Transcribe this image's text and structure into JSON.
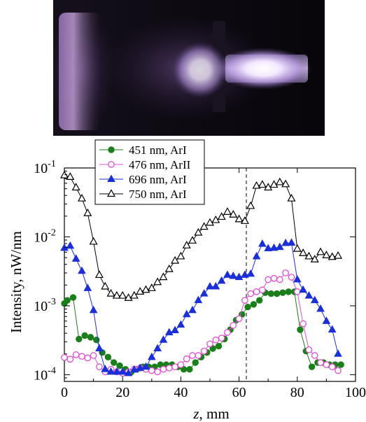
{
  "chart_data": {
    "type": "line",
    "xlabel_var": "z",
    "xlabel_unit": ", mm",
    "ylabel": "Intensity, nW/nm",
    "xlim": [
      0,
      100
    ],
    "ylim": [
      8e-05,
      0.1
    ],
    "yscale": "log",
    "x_ticks": [
      "0",
      "20",
      "40",
      "60",
      "80",
      "100"
    ],
    "y_ticks": [
      {
        "base": "10",
        "exp": "-4"
      },
      {
        "base": "10",
        "exp": "-3"
      },
      {
        "base": "10",
        "exp": "-2"
      },
      {
        "base": "10",
        "exp": "-1"
      }
    ],
    "legend_position": "top-left",
    "vline_x": 62.5,
    "series": [
      {
        "name": "451 nm, ArI",
        "color": "#1a7f1a",
        "marker": "circle-filled",
        "x": [
          0,
          1,
          3,
          5,
          7,
          9,
          11,
          13,
          15,
          17,
          19,
          21,
          23,
          25,
          27,
          29,
          31,
          33,
          35,
          37,
          39,
          41,
          43,
          45,
          47,
          49,
          51,
          53,
          55,
          57,
          59,
          61,
          63,
          65,
          67,
          69,
          71,
          73,
          75,
          77,
          79,
          81,
          83,
          85,
          87,
          89,
          91,
          93,
          95
        ],
        "y": [
          0.00108,
          0.0012,
          0.00132,
          0.00033,
          0.00037,
          0.00035,
          0.00032,
          0.00021,
          0.00018,
          0.00015,
          0.000135,
          0.00012,
          0.00011,
          0.00012,
          0.00013,
          0.00013,
          0.00013,
          0.00014,
          0.00014,
          0.00014,
          0.00013,
          0.00012,
          0.00012,
          0.00015,
          0.00018,
          0.00021,
          0.00024,
          0.00026,
          0.00033,
          0.00045,
          0.00062,
          0.00075,
          0.00096,
          0.00105,
          0.0012,
          0.00155,
          0.0015,
          0.0015,
          0.00155,
          0.0016,
          0.0016,
          0.00045,
          0.00022,
          0.00013,
          0.00015,
          0.00015,
          0.00014,
          0.00014,
          0.00014
        ]
      },
      {
        "name": "476 nm, ArII",
        "color": "#e24fd6",
        "marker": "circle-open",
        "x": [
          0,
          2,
          4,
          6,
          8,
          10,
          12,
          14,
          16,
          18,
          20,
          22,
          24,
          26,
          28,
          30,
          32,
          34,
          36,
          38,
          40,
          42,
          44,
          46,
          48,
          50,
          52,
          54,
          56,
          58,
          60,
          62,
          64,
          66,
          68,
          70,
          72,
          74,
          76,
          78,
          80,
          82,
          84,
          86,
          88,
          90,
          92,
          94
        ],
        "y": [
          0.000178,
          0.000168,
          0.000195,
          0.000185,
          0.000175,
          0.00019,
          0.00013,
          0.00011,
          0.00012,
          0.00011,
          0.000105,
          0.00011,
          0.00012,
          0.000125,
          0.00012,
          0.000115,
          0.00011,
          0.00012,
          0.000125,
          0.00013,
          0.00014,
          0.00017,
          0.00019,
          0.00019,
          0.00022,
          0.00028,
          0.00032,
          0.00034,
          0.00041,
          0.00052,
          0.00065,
          0.0012,
          0.0015,
          0.0016,
          0.0017,
          0.0024,
          0.0025,
          0.0024,
          0.003,
          0.0026,
          0.0016,
          0.00055,
          0.00023,
          0.00019,
          0.00015,
          0.00014,
          0.00013,
          0.000115
        ]
      },
      {
        "name": "696 nm, ArI",
        "color": "#1b2fd6",
        "marker": "triangle-filled",
        "x": [
          0,
          2,
          4,
          6,
          8,
          10,
          12,
          14,
          16,
          18,
          20,
          22,
          24,
          26,
          28,
          30,
          32,
          34,
          36,
          38,
          40,
          42,
          44,
          46,
          48,
          50,
          52,
          54,
          56,
          58,
          60,
          62,
          64,
          66,
          68,
          70,
          72,
          74,
          76,
          78,
          80,
          82,
          84,
          86,
          88,
          90,
          92,
          94
        ],
        "y": [
          0.0069,
          0.0074,
          0.0048,
          0.0032,
          0.0018,
          0.00086,
          0.00024,
          0.00012,
          0.00011,
          0.00011,
          0.00011,
          0.000105,
          0.000118,
          0.000125,
          0.00013,
          0.00018,
          0.00024,
          0.00032,
          0.00041,
          0.00044,
          0.00053,
          0.00075,
          0.00086,
          0.0012,
          0.0015,
          0.0019,
          0.0019,
          0.0023,
          0.0028,
          0.0027,
          0.0026,
          0.0028,
          0.0029,
          0.0052,
          0.0079,
          0.0068,
          0.0069,
          0.0071,
          0.0081,
          0.0082,
          0.0024,
          0.0017,
          0.0014,
          0.0012,
          0.0009,
          0.0006,
          0.00045,
          0.0002
        ]
      },
      {
        "name": "750 nm, ArI",
        "color": "#000000",
        "marker": "triangle-open",
        "x": [
          0,
          2,
          4,
          6,
          8,
          10,
          12,
          14,
          16,
          18,
          20,
          22,
          24,
          26,
          28,
          30,
          32,
          34,
          36,
          38,
          40,
          42,
          44,
          46,
          48,
          50,
          52,
          54,
          56,
          58,
          60,
          62,
          64,
          66,
          68,
          70,
          72,
          74,
          76,
          78,
          80,
          82,
          84,
          86,
          88,
          90,
          92,
          94
        ],
        "y": [
          0.078,
          0.074,
          0.052,
          0.036,
          0.022,
          0.0085,
          0.0028,
          0.0019,
          0.0015,
          0.0014,
          0.0014,
          0.0013,
          0.0014,
          0.0016,
          0.0017,
          0.0018,
          0.0022,
          0.0026,
          0.0034,
          0.0045,
          0.0052,
          0.0075,
          0.0088,
          0.0115,
          0.014,
          0.016,
          0.0175,
          0.0195,
          0.023,
          0.021,
          0.018,
          0.017,
          0.028,
          0.055,
          0.057,
          0.052,
          0.057,
          0.062,
          0.058,
          0.036,
          0.0067,
          0.0058,
          0.0052,
          0.0047,
          0.006,
          0.0054,
          0.0051,
          0.0053
        ]
      }
    ]
  }
}
